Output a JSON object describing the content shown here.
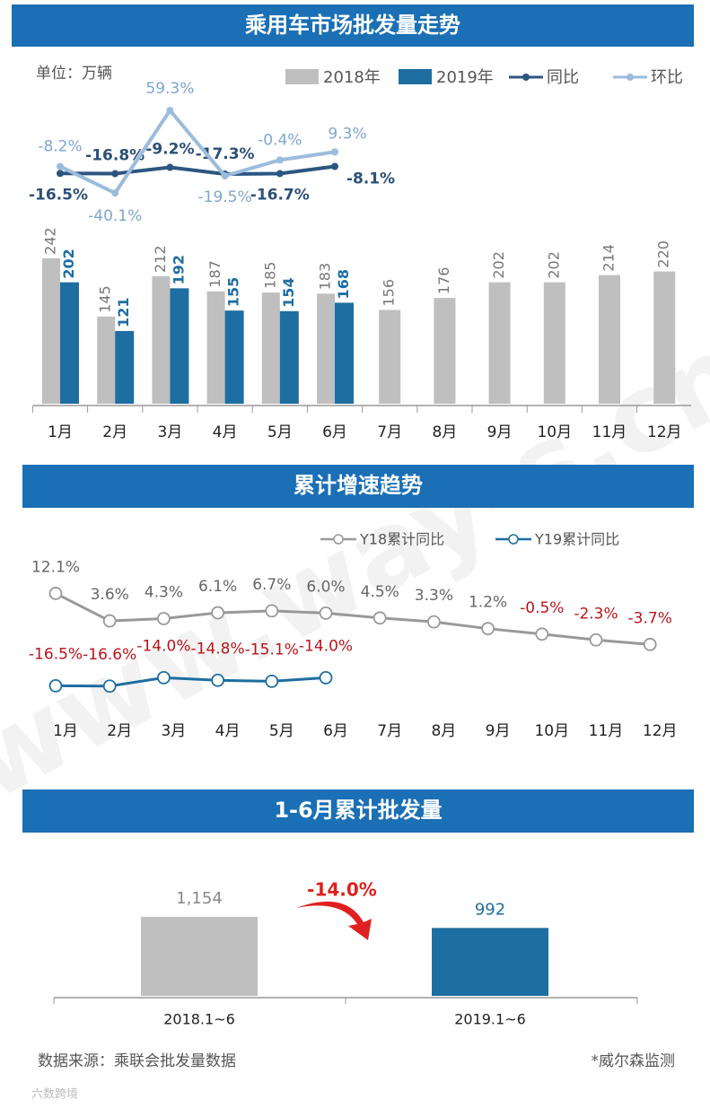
{
  "chart_data": [
    {
      "type": "combo",
      "title": "乘用车市场批发量走势",
      "unit": "单位：万辆",
      "categories": [
        "1月",
        "2月",
        "3月",
        "4月",
        "5月",
        "6月",
        "7月",
        "8月",
        "9月",
        "10月",
        "11月",
        "12月"
      ],
      "series": [
        {
          "name": "2018年",
          "color": "#bfbfbf",
          "values": [
            242,
            145,
            212,
            187,
            185,
            183,
            156,
            176,
            202,
            202,
            214,
            220
          ]
        },
        {
          "name": "2019年",
          "color": "#1e6ea1",
          "values": [
            202,
            121,
            192,
            155,
            154,
            168,
            null,
            null,
            null,
            null,
            null,
            null
          ]
        },
        {
          "name": "同比",
          "type": "line",
          "color": "#2c5680",
          "values": [
            -16.5,
            -16.8,
            -9.2,
            -17.3,
            -16.7,
            -8.1,
            null,
            null,
            null,
            null,
            null,
            null
          ],
          "value_labels": [
            "-16.5%",
            "-16.8%",
            "-9.2%",
            "-17.3%",
            "-16.7%",
            "-8.1%",
            null,
            null,
            null,
            null,
            null,
            null
          ]
        },
        {
          "name": "环比",
          "type": "line",
          "color": "#9bbcdc",
          "values": [
            -8.2,
            -40.1,
            59.3,
            -19.5,
            -0.4,
            9.3,
            null,
            null,
            null,
            null,
            null,
            null
          ],
          "value_labels": [
            "-8.2%",
            "-40.1%",
            "59.3%",
            "-19.5%",
            "-0.4%",
            "9.3%",
            null,
            null,
            null,
            null,
            null,
            null
          ]
        }
      ]
    },
    {
      "type": "line",
      "title": "累计增速趋势",
      "categories": [
        "1月",
        "2月",
        "3月",
        "4月",
        "5月",
        "6月",
        "7月",
        "8月",
        "9月",
        "10月",
        "11月",
        "12月"
      ],
      "series": [
        {
          "name": "Y18累计同比",
          "color": "#999999",
          "values": [
            12.1,
            3.6,
            4.3,
            6.1,
            6.7,
            6.0,
            4.5,
            3.3,
            1.2,
            -0.5,
            -2.3,
            -3.7
          ],
          "value_labels": [
            "12.1%",
            "3.6%",
            "4.3%",
            "6.1%",
            "6.7%",
            "6.0%",
            "4.5%",
            "3.3%",
            "1.2%",
            "-0.5%",
            "-2.3%",
            "-3.7%"
          ]
        },
        {
          "name": "Y19累计同比",
          "color": "#1e6ea1",
          "values": [
            -16.5,
            -16.6,
            -14.0,
            -14.8,
            -15.1,
            -14.0,
            null,
            null,
            null,
            null,
            null,
            null
          ],
          "value_labels": [
            "-16.5%",
            "-16.6%",
            "-14.0%",
            "-14.8%",
            "-15.1%",
            "-14.0%",
            null,
            null,
            null,
            null,
            null,
            null
          ]
        }
      ]
    },
    {
      "type": "bar",
      "title": "1-6月累计批发量",
      "categories": [
        "2018.1~6",
        "2019.1~6"
      ],
      "values": [
        1154,
        992
      ],
      "value_labels": [
        "1,154",
        "992"
      ],
      "colors": [
        "#bfbfbf",
        "#1e6ea1"
      ],
      "annotation": "-14.0%"
    }
  ],
  "footer": {
    "source": "数据来源：乘联会批发量数据",
    "note": "*威尔森监测",
    "logo": "六数跨境"
  },
  "watermark": "www.way-s.cn"
}
